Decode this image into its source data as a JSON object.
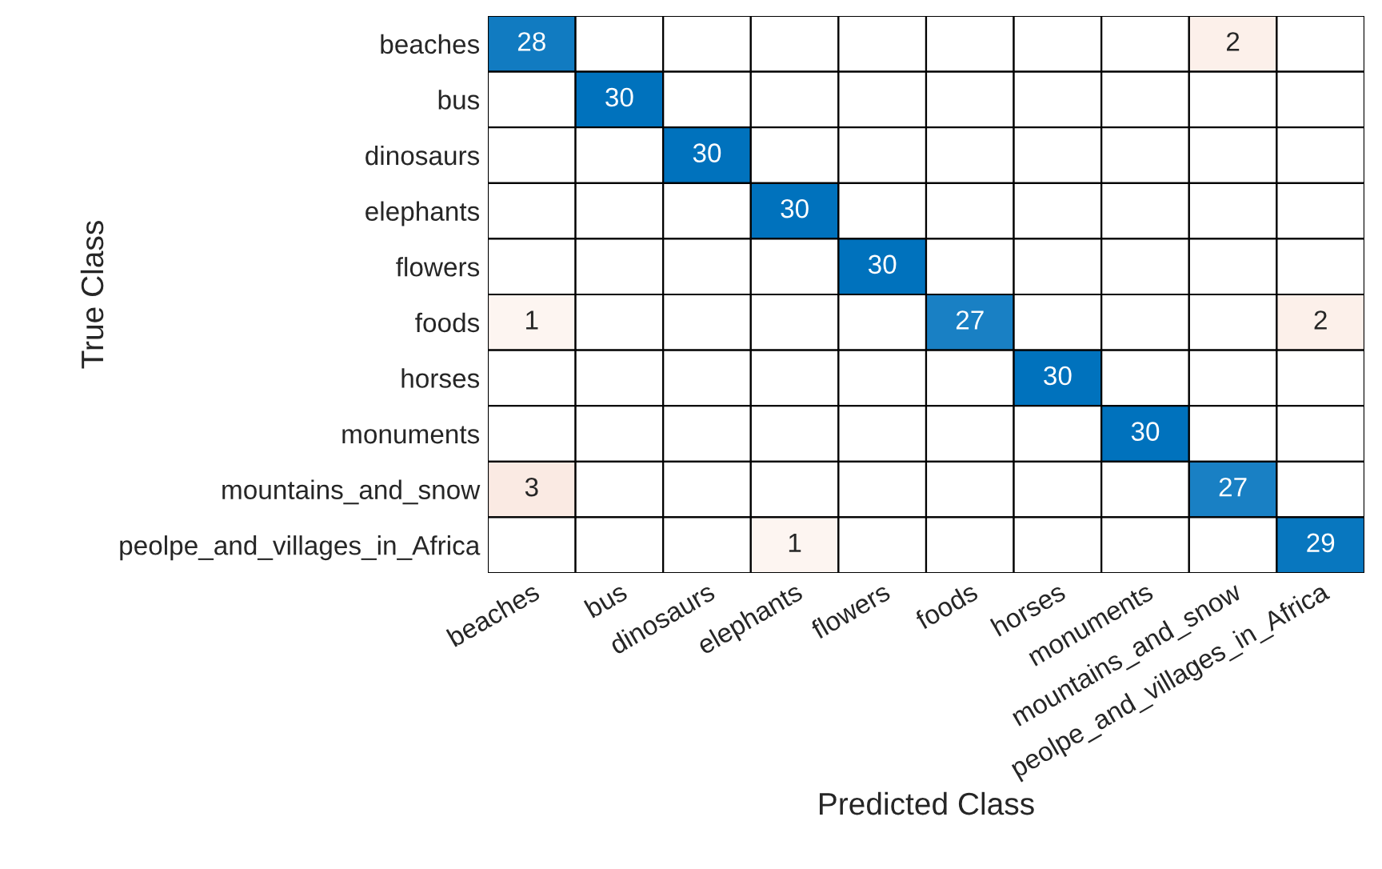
{
  "chart_data": {
    "type": "heatmap",
    "xlabel": "Predicted Class",
    "ylabel": "True Class",
    "data_labels": true,
    "categories": [
      "beaches",
      "bus",
      "dinosaurs",
      "elephants",
      "flowers",
      "foods",
      "horses",
      "monuments",
      "mountains_and_snow",
      "peolpe_and_villages_in_Africa"
    ],
    "y_categories": [
      "beaches",
      "bus",
      "dinosaurs",
      "elephants",
      "flowers",
      "foods",
      "horses",
      "monuments",
      "mountains_and_snow",
      "peolpe_and_villages_in_Africa"
    ],
    "cells": [
      [
        28,
        null,
        null,
        null,
        null,
        null,
        null,
        null,
        2,
        null
      ],
      [
        null,
        30,
        null,
        null,
        null,
        null,
        null,
        null,
        null,
        null
      ],
      [
        null,
        null,
        30,
        null,
        null,
        null,
        null,
        null,
        null,
        null
      ],
      [
        null,
        null,
        null,
        30,
        null,
        null,
        null,
        null,
        null,
        null
      ],
      [
        null,
        null,
        null,
        null,
        30,
        null,
        null,
        null,
        null,
        null
      ],
      [
        1,
        null,
        null,
        null,
        null,
        27,
        null,
        null,
        null,
        2
      ],
      [
        null,
        null,
        null,
        null,
        null,
        null,
        30,
        null,
        null,
        null
      ],
      [
        null,
        null,
        null,
        null,
        null,
        null,
        null,
        30,
        null,
        null
      ],
      [
        3,
        null,
        null,
        null,
        null,
        null,
        null,
        null,
        27,
        null
      ],
      [
        null,
        null,
        null,
        1,
        null,
        null,
        null,
        null,
        null,
        29
      ]
    ]
  }
}
